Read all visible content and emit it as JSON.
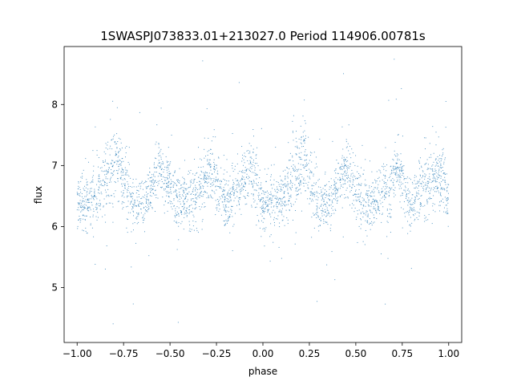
{
  "chart_data": {
    "type": "scatter",
    "title": "1SWASPJ073833.01+213027.0 Period 114906.00781s",
    "xlabel": "phase",
    "ylabel": "flux",
    "xlim": [
      -1.07,
      1.07
    ],
    "ylim": [
      4.1,
      8.95
    ],
    "grid": false,
    "legend": "none",
    "marker_color": "#1f77b4",
    "x_ticks": [
      {
        "value": -1.0,
        "label": "−1.00"
      },
      {
        "value": -0.75,
        "label": "−0.75"
      },
      {
        "value": -0.5,
        "label": "−0.50"
      },
      {
        "value": -0.25,
        "label": "−0.25"
      },
      {
        "value": 0.0,
        "label": "0.00"
      },
      {
        "value": 0.25,
        "label": "0.25"
      },
      {
        "value": 0.5,
        "label": "0.50"
      },
      {
        "value": 0.75,
        "label": "0.75"
      },
      {
        "value": 1.0,
        "label": "1.00"
      }
    ],
    "y_ticks": [
      {
        "value": 5,
        "label": "5"
      },
      {
        "value": 6,
        "label": "6"
      },
      {
        "value": 7,
        "label": "7"
      },
      {
        "value": 8,
        "label": "8"
      }
    ],
    "phase_profile": [
      {
        "x": -1.0,
        "median": 6.4,
        "spread": 0.22
      },
      {
        "x": -0.9,
        "median": 6.4,
        "spread": 0.22
      },
      {
        "x": -0.82,
        "median": 6.9,
        "spread": 0.35
      },
      {
        "x": -0.78,
        "median": 7.05,
        "spread": 0.3
      },
      {
        "x": -0.7,
        "median": 6.35,
        "spread": 0.22
      },
      {
        "x": -0.62,
        "median": 6.45,
        "spread": 0.2
      },
      {
        "x": -0.56,
        "median": 7.0,
        "spread": 0.2
      },
      {
        "x": -0.45,
        "median": 6.35,
        "spread": 0.25
      },
      {
        "x": -0.32,
        "median": 6.6,
        "spread": 0.25
      },
      {
        "x": -0.28,
        "median": 6.95,
        "spread": 0.25
      },
      {
        "x": -0.2,
        "median": 6.4,
        "spread": 0.2
      },
      {
        "x": -0.05,
        "median": 6.9,
        "spread": 0.28
      },
      {
        "x": 0.0,
        "median": 6.4,
        "spread": 0.22
      },
      {
        "x": 0.1,
        "median": 6.4,
        "spread": 0.22
      },
      {
        "x": 0.18,
        "median": 6.9,
        "spread": 0.35
      },
      {
        "x": 0.22,
        "median": 7.05,
        "spread": 0.3
      },
      {
        "x": 0.3,
        "median": 6.35,
        "spread": 0.22
      },
      {
        "x": 0.38,
        "median": 6.45,
        "spread": 0.2
      },
      {
        "x": 0.44,
        "median": 7.0,
        "spread": 0.2
      },
      {
        "x": 0.55,
        "median": 6.35,
        "spread": 0.25
      },
      {
        "x": 0.68,
        "median": 6.6,
        "spread": 0.25
      },
      {
        "x": 0.72,
        "median": 6.95,
        "spread": 0.25
      },
      {
        "x": 0.8,
        "median": 6.4,
        "spread": 0.2
      },
      {
        "x": 0.95,
        "median": 6.9,
        "spread": 0.28
      },
      {
        "x": 1.0,
        "median": 6.4,
        "spread": 0.22
      }
    ]
  }
}
